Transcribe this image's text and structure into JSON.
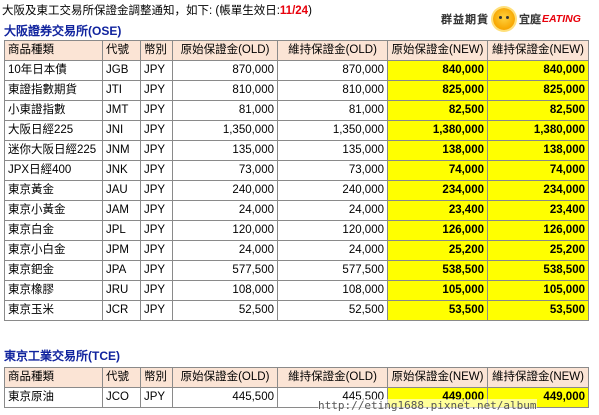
{
  "notice": {
    "text": "大阪及東工交易所保證金調整通知，如下: (帳單生效日:",
    "date": "11/24",
    "suffix": ")"
  },
  "logo": {
    "left_text": "群益期貨",
    "right_text": "宜庭",
    "english": "EATING"
  },
  "columns": [
    "商品種類",
    "代號",
    "幣別",
    "原始保證金(OLD)",
    "維持保證金(OLD)",
    "原始保證金(NEW)",
    "維持保證金(NEW)"
  ],
  "ose": {
    "title": "大阪證券交易所(OSE)",
    "rows": [
      [
        "10年日本債",
        "JGB",
        "JPY",
        "870,000",
        "870,000",
        "840,000",
        "840,000"
      ],
      [
        "東證指數期貨",
        "JTI",
        "JPY",
        "810,000",
        "810,000",
        "825,000",
        "825,000"
      ],
      [
        "小東證指數",
        "JMT",
        "JPY",
        "81,000",
        "81,000",
        "82,500",
        "82,500"
      ],
      [
        "大阪日經225",
        "JNI",
        "JPY",
        "1,350,000",
        "1,350,000",
        "1,380,000",
        "1,380,000"
      ],
      [
        "迷你大阪日經225",
        "JNM",
        "JPY",
        "135,000",
        "135,000",
        "138,000",
        "138,000"
      ],
      [
        "JPX日經400",
        "JNK",
        "JPY",
        "73,000",
        "73,000",
        "74,000",
        "74,000"
      ],
      [
        "東京黃金",
        "JAU",
        "JPY",
        "240,000",
        "240,000",
        "234,000",
        "234,000"
      ],
      [
        "東京小黃金",
        "JAM",
        "JPY",
        "24,000",
        "24,000",
        "23,400",
        "23,400"
      ],
      [
        "東京白金",
        "JPL",
        "JPY",
        "120,000",
        "120,000",
        "126,000",
        "126,000"
      ],
      [
        "東京小白金",
        "JPM",
        "JPY",
        "24,000",
        "24,000",
        "25,200",
        "25,200"
      ],
      [
        "東京鈀金",
        "JPA",
        "JPY",
        "577,500",
        "577,500",
        "538,500",
        "538,500"
      ],
      [
        "東京橡膠",
        "JRU",
        "JPY",
        "108,000",
        "108,000",
        "105,000",
        "105,000"
      ],
      [
        "東京玉米",
        "JCR",
        "JPY",
        "52,500",
        "52,500",
        "53,500",
        "53,500"
      ]
    ]
  },
  "tce": {
    "title": "東京工業交易所(TCE)",
    "rows": [
      [
        "東京原油",
        "JCO",
        "JPY",
        "445,500",
        "445,500",
        "449,000",
        "449,000"
      ]
    ]
  },
  "watermark": "http://eting1688.pixnet.net/album"
}
